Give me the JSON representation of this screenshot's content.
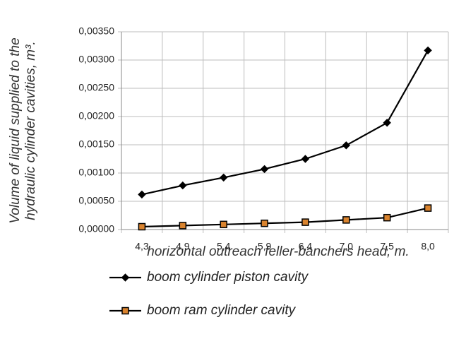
{
  "chart_data": {
    "type": "line",
    "ylabel": [
      "Volume of liquid supplied to the",
      "hydraulic cylinder cavities, m³."
    ],
    "xlabel": "horizontal outreach feller-banchers head, m.",
    "categories": [
      "4,3",
      "4,9",
      "5,4",
      "5,9",
      "6,4",
      "7,0",
      "7,5",
      "8,0"
    ],
    "series": [
      {
        "name": "boom cylinder piston cavity",
        "color": "#000000",
        "marker": "diamond",
        "marker_fill": "#000000",
        "values": [
          0.00062,
          0.00078,
          0.00092,
          0.00107,
          0.00125,
          0.00149,
          0.00189,
          0.00317
        ]
      },
      {
        "name": "boom ram cylinder cavity",
        "color": "#000000",
        "marker": "square",
        "marker_fill": "#d9832e",
        "values": [
          5e-05,
          7e-05,
          9e-05,
          0.00011,
          0.00013,
          0.00017,
          0.00021,
          0.00038
        ]
      }
    ],
    "ylim": [
      0,
      0.0035
    ],
    "yticks": [
      {
        "value": 0,
        "label": "0,00000"
      },
      {
        "value": 0.0005,
        "label": "0,00050"
      },
      {
        "value": 0.001,
        "label": "0,00100"
      },
      {
        "value": 0.0015,
        "label": "0,00150"
      },
      {
        "value": 0.002,
        "label": "0,00200"
      },
      {
        "value": 0.0025,
        "label": "0,00250"
      },
      {
        "value": 0.003,
        "label": "0,00300"
      },
      {
        "value": 0.0035,
        "label": "0,00350"
      }
    ],
    "grid": true
  }
}
